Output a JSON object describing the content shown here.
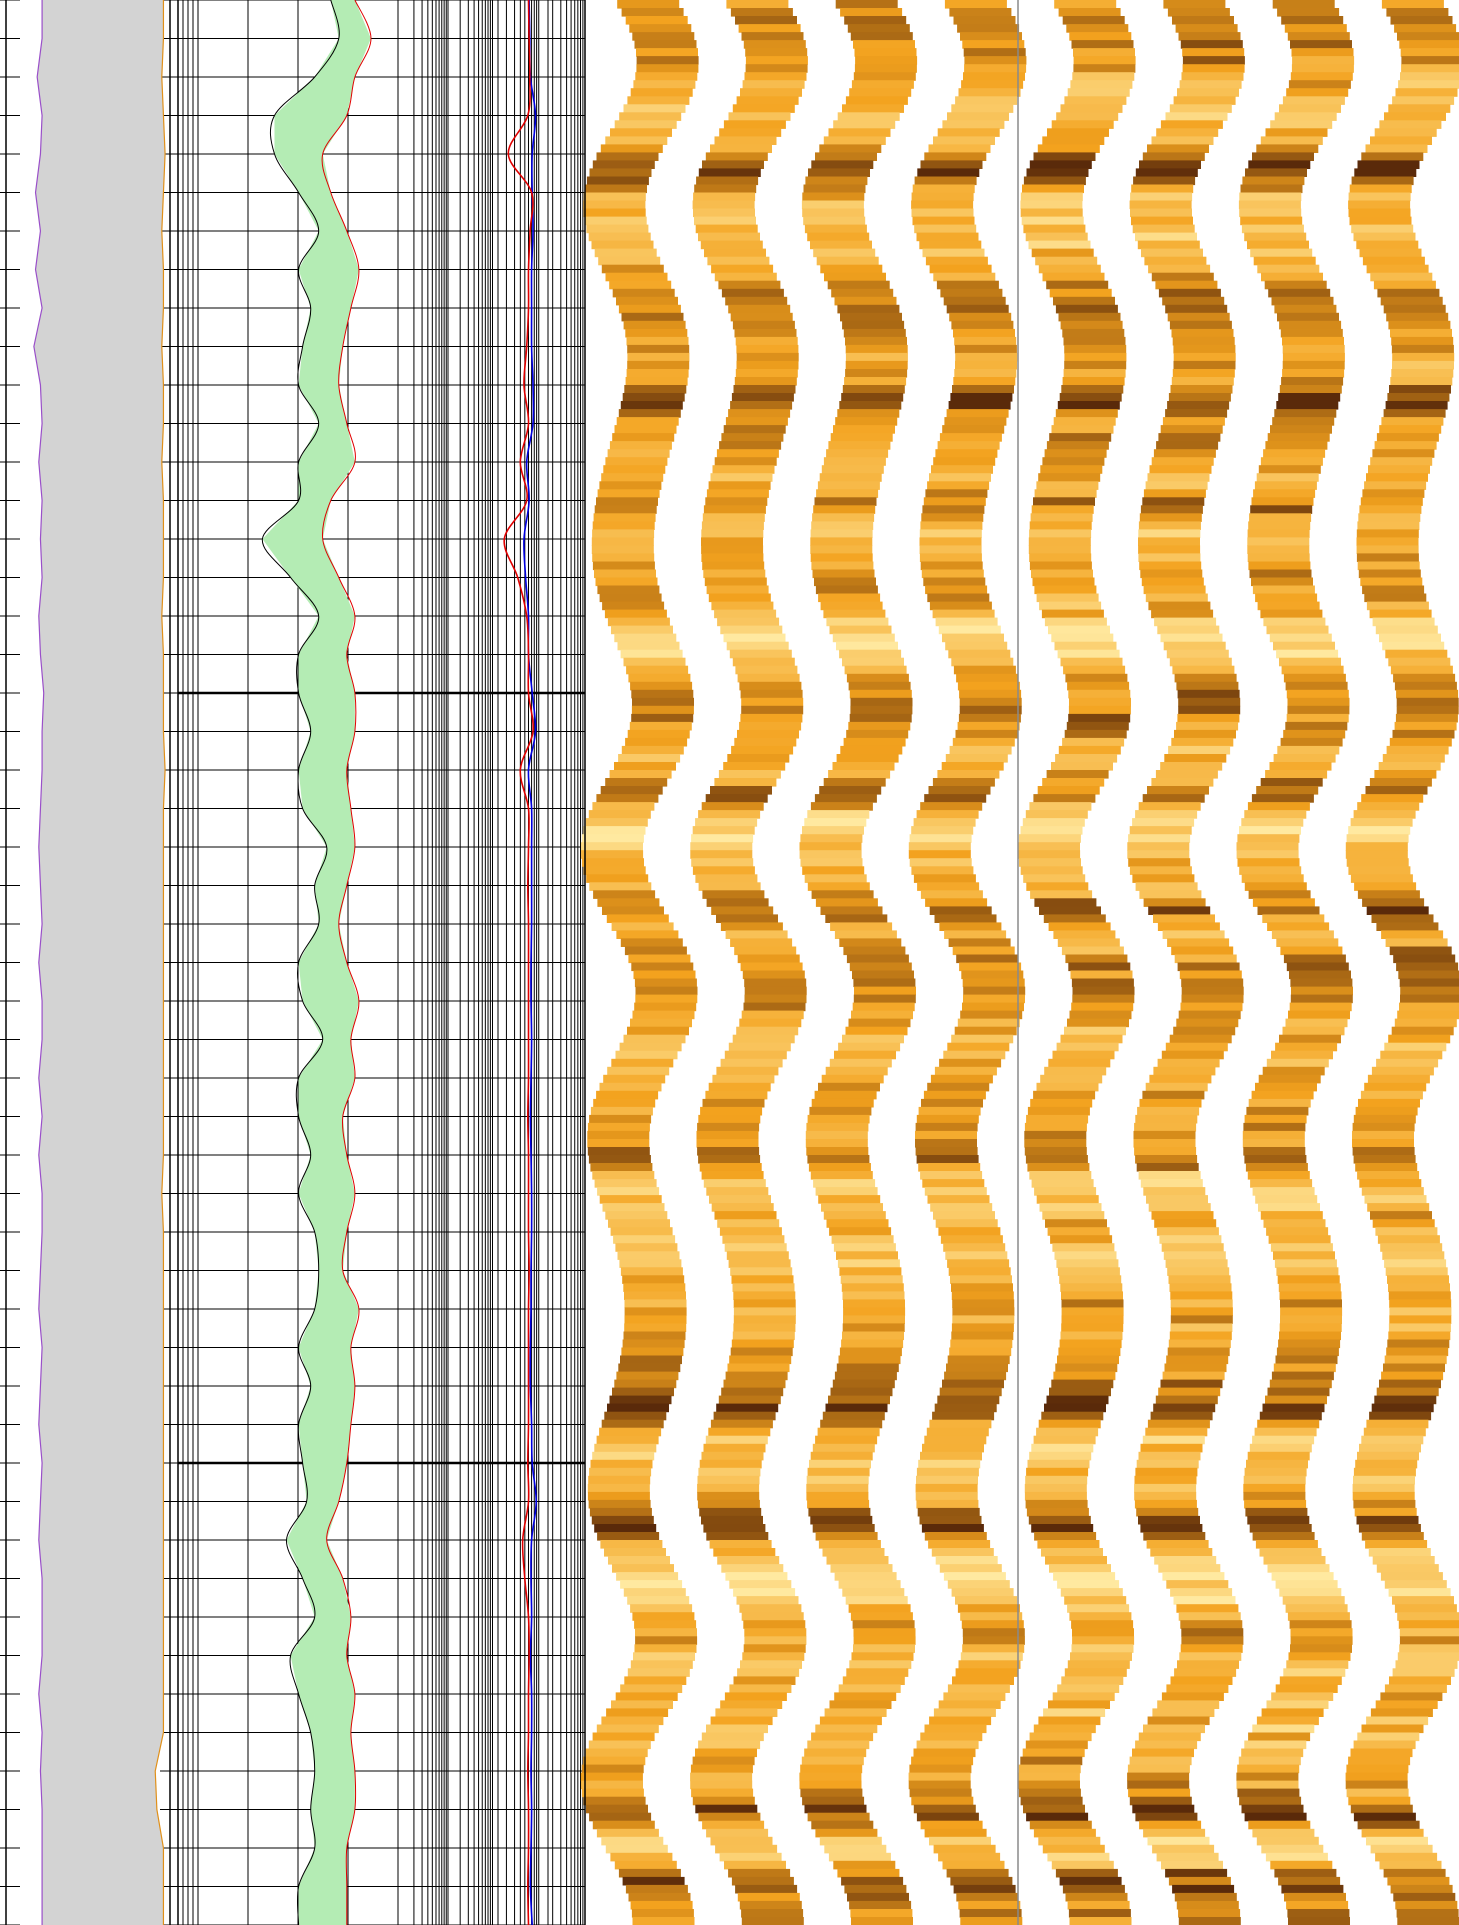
{
  "colors": {
    "caliper_line": "#9a4fc9",
    "bitsize_line": "#e0901a",
    "caliper_fill": "#d3d3d3",
    "porosity_fill": "#b4ecb4",
    "porosity_left_line": "#000000",
    "resistivity_shallow": "#e00000",
    "resistivity_deep": "#0000e0",
    "grid_major": "#000000",
    "grid_minor": "#000000",
    "image_light": "#ffe9a0",
    "image_mid": "#f3a21e",
    "image_dark": "#5a2a0a",
    "image_strip_separator": "#8a8a8a"
  },
  "chart_data": {
    "type": "well-log",
    "depth_axis": {
      "range": [
        0,
        100
      ],
      "inverted": true,
      "labels_visible": false
    },
    "tracks": [
      {
        "id": "caliper",
        "type": "area",
        "curves": [
          {
            "key": "caliper",
            "style": "line+fill",
            "x_range": [
              0,
              1
            ]
          },
          {
            "key": "bitsize",
            "style": "line",
            "x_range": [
              0,
              1
            ]
          }
        ],
        "depth": [
          0,
          2,
          4,
          6,
          8,
          10,
          12,
          14,
          16,
          18,
          20,
          22,
          24,
          26,
          28,
          30,
          32,
          34,
          36,
          38,
          40,
          42,
          44,
          46,
          48,
          50,
          52,
          54,
          56,
          58,
          60,
          62,
          64,
          66,
          68,
          70,
          72,
          74,
          76,
          78,
          80,
          82,
          84,
          86,
          88,
          90,
          92,
          94,
          96,
          98,
          100
        ],
        "caliper": [
          0.22,
          0.22,
          0.19,
          0.22,
          0.21,
          0.18,
          0.21,
          0.18,
          0.22,
          0.17,
          0.21,
          0.22,
          0.2,
          0.22,
          0.21,
          0.22,
          0.2,
          0.21,
          0.23,
          0.22,
          0.22,
          0.21,
          0.2,
          0.21,
          0.22,
          0.2,
          0.22,
          0.22,
          0.2,
          0.22,
          0.2,
          0.22,
          0.22,
          0.21,
          0.2,
          0.22,
          0.21,
          0.2,
          0.22,
          0.21,
          0.2,
          0.22,
          0.22,
          0.22,
          0.2,
          0.22,
          0.21,
          0.22,
          0.22,
          0.22,
          0.22
        ],
        "bitsize": [
          0.96,
          0.96,
          0.95,
          0.96,
          0.97,
          0.96,
          0.95,
          0.96,
          0.96,
          0.95,
          0.96,
          0.96,
          0.95,
          0.96,
          0.96,
          0.96,
          0.95,
          0.96,
          0.96,
          0.96,
          0.97,
          0.96,
          0.96,
          0.96,
          0.96,
          0.96,
          0.96,
          0.96,
          0.96,
          0.96,
          0.96,
          0.95,
          0.96,
          0.96,
          0.96,
          0.96,
          0.96,
          0.96,
          0.96,
          0.96,
          0.96,
          0.96,
          0.96,
          0.96,
          0.96,
          0.96,
          0.91,
          0.92,
          0.96,
          0.96,
          0.96
        ]
      },
      {
        "id": "porosity",
        "type": "area-between",
        "x_range": [
          0,
          1
        ],
        "grid": {
          "minor_lines": 8,
          "major_rows": 5
        },
        "depth": [
          0,
          2,
          4,
          6,
          8,
          10,
          12,
          14,
          16,
          18,
          20,
          22,
          24,
          26,
          28,
          30,
          32,
          34,
          36,
          38,
          40,
          42,
          44,
          46,
          48,
          50,
          52,
          54,
          56,
          58,
          60,
          62,
          64,
          66,
          68,
          70,
          72,
          74,
          76,
          78,
          80,
          82,
          84,
          86,
          88,
          90,
          92,
          94,
          96,
          98,
          100
        ],
        "left_curve": [
          0.38,
          0.4,
          0.34,
          0.24,
          0.24,
          0.3,
          0.35,
          0.3,
          0.33,
          0.31,
          0.3,
          0.35,
          0.3,
          0.3,
          0.21,
          0.28,
          0.35,
          0.3,
          0.3,
          0.33,
          0.3,
          0.31,
          0.37,
          0.34,
          0.35,
          0.3,
          0.31,
          0.36,
          0.3,
          0.3,
          0.33,
          0.3,
          0.34,
          0.35,
          0.34,
          0.3,
          0.33,
          0.3,
          0.31,
          0.32,
          0.27,
          0.31,
          0.34,
          0.28,
          0.3,
          0.33,
          0.34,
          0.33,
          0.34,
          0.3,
          0.3
        ],
        "right_curve": [
          0.44,
          0.48,
          0.44,
          0.42,
          0.36,
          0.38,
          0.42,
          0.45,
          0.43,
          0.41,
          0.4,
          0.42,
          0.44,
          0.38,
          0.36,
          0.4,
          0.44,
          0.42,
          0.44,
          0.44,
          0.42,
          0.43,
          0.44,
          0.42,
          0.4,
          0.42,
          0.45,
          0.43,
          0.44,
          0.41,
          0.42,
          0.44,
          0.42,
          0.41,
          0.45,
          0.43,
          0.44,
          0.43,
          0.42,
          0.4,
          0.37,
          0.41,
          0.43,
          0.42,
          0.44,
          0.43,
          0.44,
          0.44,
          0.42,
          0.42,
          0.42
        ]
      },
      {
        "id": "resistivity",
        "type": "line",
        "scale": "log",
        "x_range": [
          0.1,
          1000
        ],
        "depth": [
          0,
          2,
          4,
          6,
          8,
          10,
          12,
          14,
          16,
          18,
          20,
          22,
          24,
          26,
          28,
          30,
          32,
          34,
          36,
          38,
          40,
          42,
          44,
          46,
          48,
          50,
          52,
          54,
          56,
          58,
          60,
          62,
          64,
          66,
          68,
          70,
          72,
          74,
          76,
          78,
          80,
          82,
          84,
          86,
          88,
          90,
          92,
          94,
          96,
          98,
          100
        ],
        "shallow": [
          60,
          62,
          64,
          58,
          22,
          70,
          65,
          60,
          60,
          55,
          48,
          60,
          40,
          55,
          18,
          35,
          55,
          60,
          60,
          75,
          40,
          60,
          60,
          58,
          60,
          60,
          60,
          60,
          60,
          58,
          60,
          60,
          60,
          62,
          60,
          60,
          60,
          60,
          58,
          60,
          45,
          50,
          60,
          62,
          60,
          60,
          58,
          60,
          60,
          58,
          60
        ],
        "deep": [
          62,
          64,
          66,
          85,
          72,
          72,
          75,
          70,
          70,
          70,
          75,
          75,
          55,
          62,
          48,
          52,
          60,
          60,
          72,
          85,
          60,
          70,
          70,
          70,
          70,
          68,
          68,
          70,
          68,
          66,
          68,
          70,
          70,
          68,
          68,
          66,
          66,
          70,
          72,
          88,
          70,
          68,
          70,
          66,
          70,
          70,
          68,
          70,
          68,
          66,
          72
        ]
      },
      {
        "id": "borehole-image",
        "type": "heatmap",
        "pad_count": 8,
        "colormap": [
          "#ffe9a0",
          "#f3a21e",
          "#5a2a0a"
        ]
      }
    ]
  }
}
